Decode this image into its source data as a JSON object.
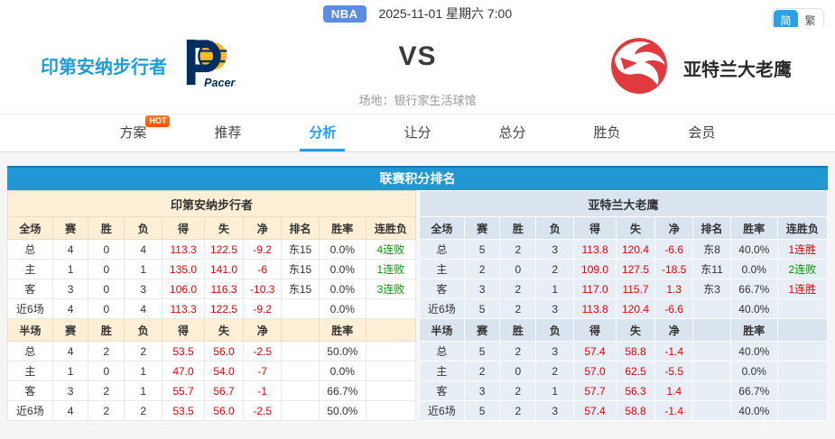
{
  "topbar": {
    "league_badge": "NBA",
    "datetime": "2025-11-01 星期六 7:00",
    "lang_simplified": "简",
    "lang_traditional": "繁"
  },
  "match": {
    "home_name": "印第安纳步行者",
    "home_logo_text": "Pacers",
    "away_name": "亚特兰大老鹰",
    "vs_label": "VS",
    "venue": "场地：银行家生活球馆"
  },
  "hot_badge": "HOT",
  "tabs": [
    {
      "key": "plan",
      "label": "方案",
      "hot": true,
      "active": false
    },
    {
      "key": "recommend",
      "label": "推荐",
      "hot": false,
      "active": false
    },
    {
      "key": "analysis",
      "label": "分析",
      "hot": false,
      "active": true
    },
    {
      "key": "handicap",
      "label": "让分",
      "hot": false,
      "active": false
    },
    {
      "key": "totals",
      "label": "总分",
      "hot": false,
      "active": false
    },
    {
      "key": "winloss",
      "label": "胜负",
      "hot": false,
      "active": false
    },
    {
      "key": "member",
      "label": "会员",
      "hot": false,
      "active": false
    }
  ],
  "standings": {
    "title": "联赛积分排名",
    "full_headers": [
      "全场",
      "赛",
      "胜",
      "负",
      "得",
      "失",
      "净",
      "排名",
      "胜率",
      "连胜负"
    ],
    "half_headers": [
      "半场",
      "赛",
      "胜",
      "负",
      "得",
      "失",
      "净",
      "",
      "胜率",
      ""
    ],
    "teams": [
      {
        "key": "pacers",
        "name": "印第安纳步行者",
        "full_rows": [
          [
            "总",
            "4",
            "0",
            "4",
            "113.3",
            "122.5",
            "-9.2",
            "东15",
            "0.0%",
            "4连败"
          ],
          [
            "主",
            "1",
            "0",
            "1",
            "135.0",
            "141.0",
            "-6",
            "东15",
            "0.0%",
            "1连败"
          ],
          [
            "客",
            "3",
            "0",
            "3",
            "106.0",
            "116.3",
            "-10.3",
            "东15",
            "0.0%",
            "3连败"
          ],
          [
            "近6场",
            "4",
            "0",
            "4",
            "113.3",
            "122.5",
            "-9.2",
            "",
            "0.0%",
            ""
          ]
        ],
        "half_rows": [
          [
            "总",
            "4",
            "2",
            "2",
            "53.5",
            "56.0",
            "-2.5",
            "",
            "50.0%",
            ""
          ],
          [
            "主",
            "1",
            "0",
            "1",
            "47.0",
            "54.0",
            "-7",
            "",
            "0.0%",
            ""
          ],
          [
            "客",
            "3",
            "2",
            "1",
            "55.7",
            "56.7",
            "-1",
            "",
            "66.7%",
            ""
          ],
          [
            "近6场",
            "4",
            "2",
            "2",
            "53.5",
            "56.0",
            "-2.5",
            "",
            "50.0%",
            ""
          ]
        ]
      },
      {
        "key": "hawks",
        "name": "亚特兰大老鹰",
        "full_rows": [
          [
            "总",
            "5",
            "2",
            "3",
            "113.8",
            "120.4",
            "-6.6",
            "东8",
            "40.0%",
            "1连胜"
          ],
          [
            "主",
            "2",
            "0",
            "2",
            "109.0",
            "127.5",
            "-18.5",
            "东11",
            "0.0%",
            "2连败"
          ],
          [
            "客",
            "3",
            "2",
            "1",
            "117.0",
            "115.7",
            "1.3",
            "东3",
            "66.7%",
            "1连胜"
          ],
          [
            "近6场",
            "5",
            "2",
            "3",
            "113.8",
            "120.4",
            "-6.6",
            "",
            "40.0%",
            ""
          ]
        ],
        "half_rows": [
          [
            "总",
            "5",
            "2",
            "3",
            "57.4",
            "58.8",
            "-1.4",
            "",
            "40.0%",
            ""
          ],
          [
            "主",
            "2",
            "0",
            "2",
            "57.0",
            "62.5",
            "-5.5",
            "",
            "0.0%",
            ""
          ],
          [
            "客",
            "3",
            "2",
            "1",
            "57.7",
            "56.3",
            "1.4",
            "",
            "66.7%",
            ""
          ],
          [
            "近6场",
            "5",
            "2",
            "3",
            "57.4",
            "58.8",
            "-1.4",
            "",
            "40.0%",
            ""
          ]
        ]
      }
    ]
  },
  "colors": {
    "accent_blue": "#1e9fff",
    "title_bar_blue": "#2097d3",
    "home_name_blue": "#1e9ddb",
    "value_red": "#e60000",
    "value_green": "#009900",
    "left_header_cream": "#fcefd5",
    "right_header_blue": "#d9e4ee",
    "right_cell_blue": "#e7eef5",
    "nba_badge_blue": "#5b8ce4",
    "hot_orange": "#ff4d00",
    "pacers_navy": "#002d62",
    "pacers_gold": "#fdb927",
    "hawks_red": "#e03a3e"
  }
}
